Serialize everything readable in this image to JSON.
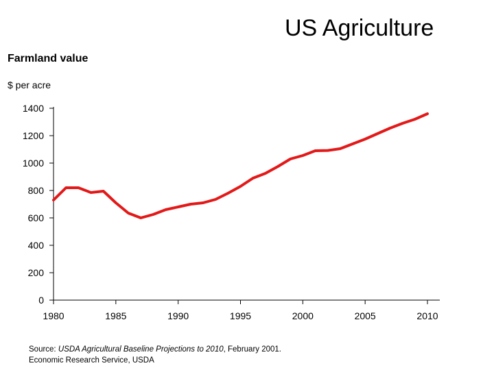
{
  "slide_title": "US Agriculture",
  "chart_data": {
    "type": "line",
    "title": "Farmland value",
    "ylabel": "$ per acre",
    "xlabel": "",
    "xlim": [
      1980,
      2010
    ],
    "ylim": [
      0,
      1400
    ],
    "xticks": [
      1980,
      1985,
      1990,
      1995,
      2000,
      2005,
      2010
    ],
    "yticks": [
      0,
      200,
      400,
      600,
      800,
      1000,
      1200,
      1400
    ],
    "series": [
      {
        "name": "Farmland value",
        "color": "#e31919",
        "x": [
          1980,
          1981,
          1982,
          1983,
          1984,
          1985,
          1986,
          1987,
          1988,
          1989,
          1990,
          1991,
          1992,
          1993,
          1994,
          1995,
          1996,
          1997,
          1998,
          1999,
          2000,
          2001,
          2002,
          2003,
          2004,
          2005,
          2006,
          2007,
          2008,
          2009,
          2010
        ],
        "y": [
          730,
          820,
          820,
          785,
          795,
          710,
          635,
          600,
          625,
          660,
          680,
          700,
          710,
          735,
          780,
          830,
          890,
          925,
          975,
          1030,
          1055,
          1090,
          1092,
          1105,
          1140,
          1175,
          1215,
          1255,
          1290,
          1320,
          1360
        ]
      }
    ]
  },
  "source": {
    "label": "Source:",
    "reference": "USDA Agricultural Baseline Projections to 2010",
    "date": ", February 2001.",
    "agency": "Economic Research Service, USDA"
  }
}
